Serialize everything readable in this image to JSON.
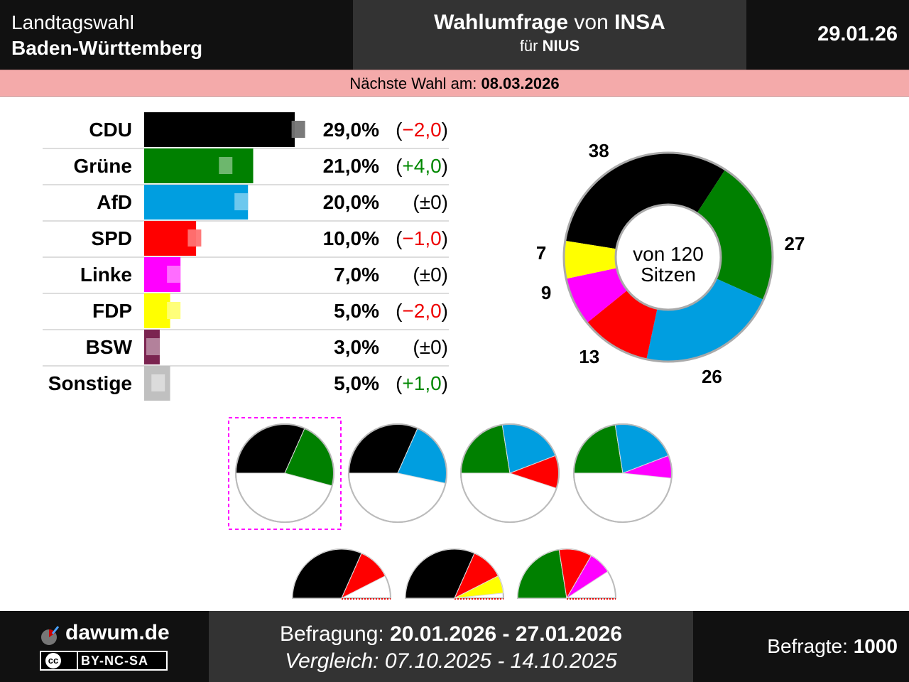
{
  "header": {
    "title_line1": "Landtagswahl",
    "title_line2": "Baden-Württemberg",
    "poll_bold": "Wahlumfrage",
    "poll_von": "von",
    "institute": "INSA",
    "fuer": "für",
    "client": "NIUS",
    "date": "29.01.26"
  },
  "next_election": {
    "label": "Nächste Wahl am:",
    "date": "08.03.2026"
  },
  "chart_data": {
    "type": "bar",
    "title": "Wahlumfrage von INSA",
    "categories": [
      "CDU",
      "Grüne",
      "AfD",
      "SPD",
      "Linke",
      "FDP",
      "BSW",
      "Sonstige"
    ],
    "values": [
      29.0,
      21.0,
      20.0,
      10.0,
      7.0,
      5.0,
      3.0,
      5.0
    ],
    "previous": [
      31.0,
      17.0,
      20.0,
      11.0,
      7.0,
      7.0,
      3.0,
      4.0
    ],
    "value_labels": [
      "29,0%",
      "21,0%",
      "20,0%",
      "10,0%",
      "7,0%",
      "5,0%",
      "3,0%",
      "5,0%"
    ],
    "change_labels": [
      "(−2,0)",
      "(+4,0)",
      "(±0)",
      "(−1,0)",
      "(±0)",
      "(−2,0)",
      "(±0)",
      "(+1,0)"
    ],
    "change_dirs": [
      "neg",
      "pos",
      "zero",
      "neg",
      "zero",
      "neg",
      "zero",
      "pos"
    ],
    "colors": [
      "#000000",
      "#008000",
      "#009ee0",
      "#ff0000",
      "#ff00ff",
      "#ffff00",
      "#7b2450",
      "#c0c0c0"
    ],
    "unit": "%",
    "xlim": [
      0,
      29
    ]
  },
  "seats": {
    "parties": [
      "CDU",
      "Grüne",
      "AfD",
      "SPD",
      "Linke",
      "FDP"
    ],
    "values": [
      38,
      27,
      26,
      13,
      9,
      7
    ],
    "labels": [
      "38",
      "27",
      "26",
      "13",
      "9",
      "7"
    ],
    "colors": [
      "#000000",
      "#008000",
      "#009ee0",
      "#ff0000",
      "#ff00ff",
      "#ffff00"
    ],
    "total_label_1": "von 120",
    "total_label_2": "Sitzen",
    "total": 120
  },
  "coalitions": [
    {
      "parties": [
        "CDU",
        "Grüne"
      ],
      "highlighted": true,
      "majority": true
    },
    {
      "parties": [
        "CDU",
        "AfD"
      ],
      "highlighted": false,
      "majority": true
    },
    {
      "parties": [
        "Grüne",
        "AfD",
        "SPD"
      ],
      "highlighted": false,
      "majority": true
    },
    {
      "parties": [
        "Grüne",
        "AfD",
        "Linke"
      ],
      "highlighted": false,
      "majority": true
    },
    {
      "parties": [
        "CDU",
        "SPD"
      ],
      "highlighted": false,
      "majority": false
    },
    {
      "parties": [
        "CDU",
        "SPD",
        "FDP"
      ],
      "highlighted": false,
      "majority": false
    },
    {
      "parties": [
        "Grüne",
        "SPD",
        "Linke"
      ],
      "highlighted": false,
      "majority": false
    }
  ],
  "footer": {
    "site": "dawum.de",
    "license_cc": "cc",
    "license": "BY-NC-SA",
    "survey_label": "Befragung:",
    "survey_period": "20.01.2026 - 27.01.2026",
    "compare_label": "Vergleich:",
    "compare_period": "07.10.2025 - 14.10.2025",
    "respondents_label": "Befragte:",
    "respondents": "1000"
  }
}
